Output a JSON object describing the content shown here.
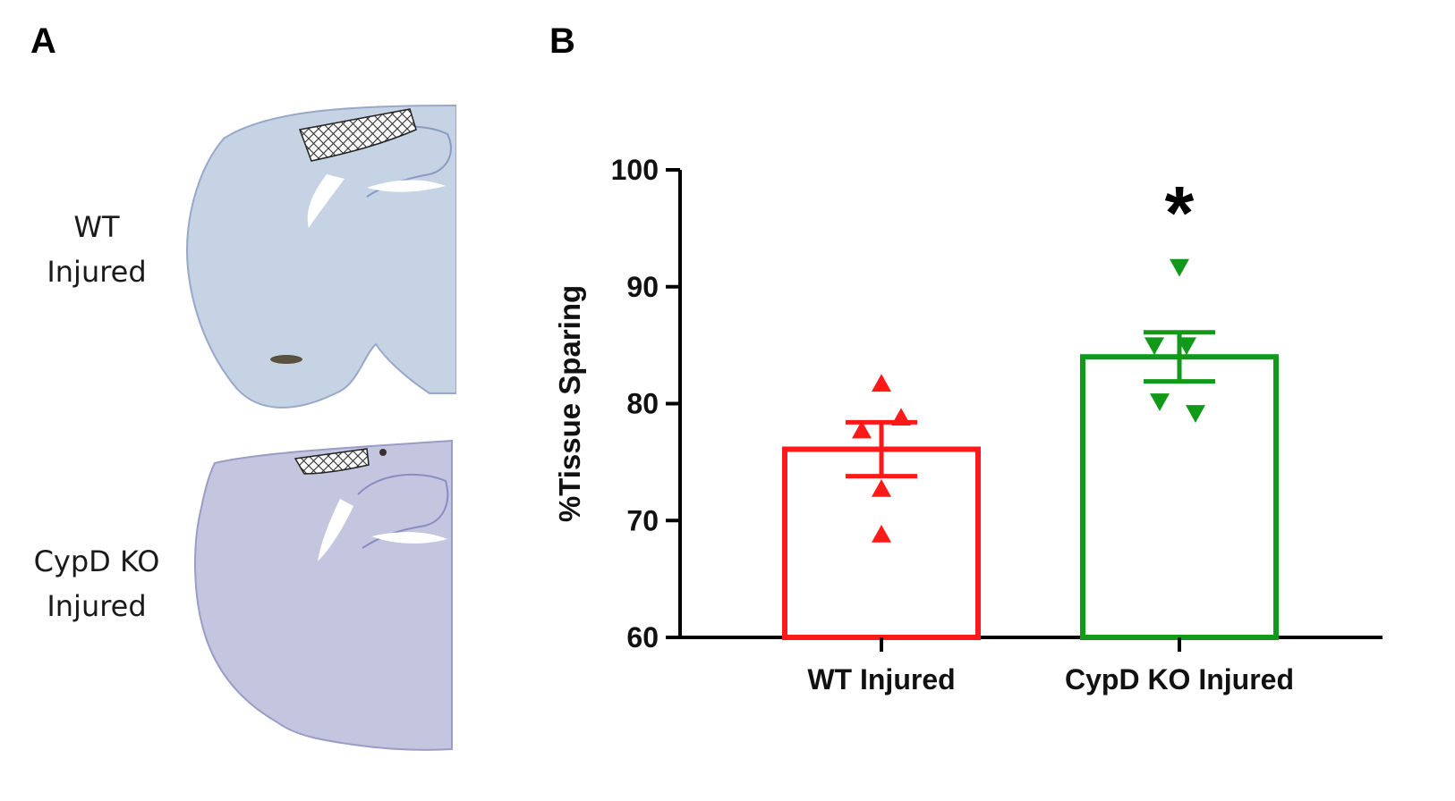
{
  "panels": {
    "a": {
      "letter": "A",
      "rows": [
        {
          "line1": "WT",
          "line2": "Injured"
        },
        {
          "line1": "CypD KO",
          "line2": "Injured"
        }
      ]
    },
    "b": {
      "letter": "B"
    }
  },
  "chart_data": {
    "type": "bar",
    "ylabel": "%Tissue Sparing",
    "xlabel": "",
    "ylim": [
      60,
      100
    ],
    "yticks": [
      60,
      70,
      80,
      90,
      100
    ],
    "categories": [
      "WT Injured",
      "CypD KO Injured"
    ],
    "values": [
      76.1,
      84.0
    ],
    "sem": [
      2.3,
      2.1
    ],
    "points": [
      [
        81.7,
        78.8,
        77.7,
        72.7,
        68.8
      ],
      [
        91.7,
        85.0,
        85.0,
        80.2,
        79.2
      ]
    ],
    "markers": [
      "triangle-up",
      "triangle-down"
    ],
    "colors": [
      "#ff1a1a",
      "#119a1a"
    ],
    "annotations": [
      {
        "category": "CypD KO Injured",
        "text": "*"
      }
    ]
  }
}
